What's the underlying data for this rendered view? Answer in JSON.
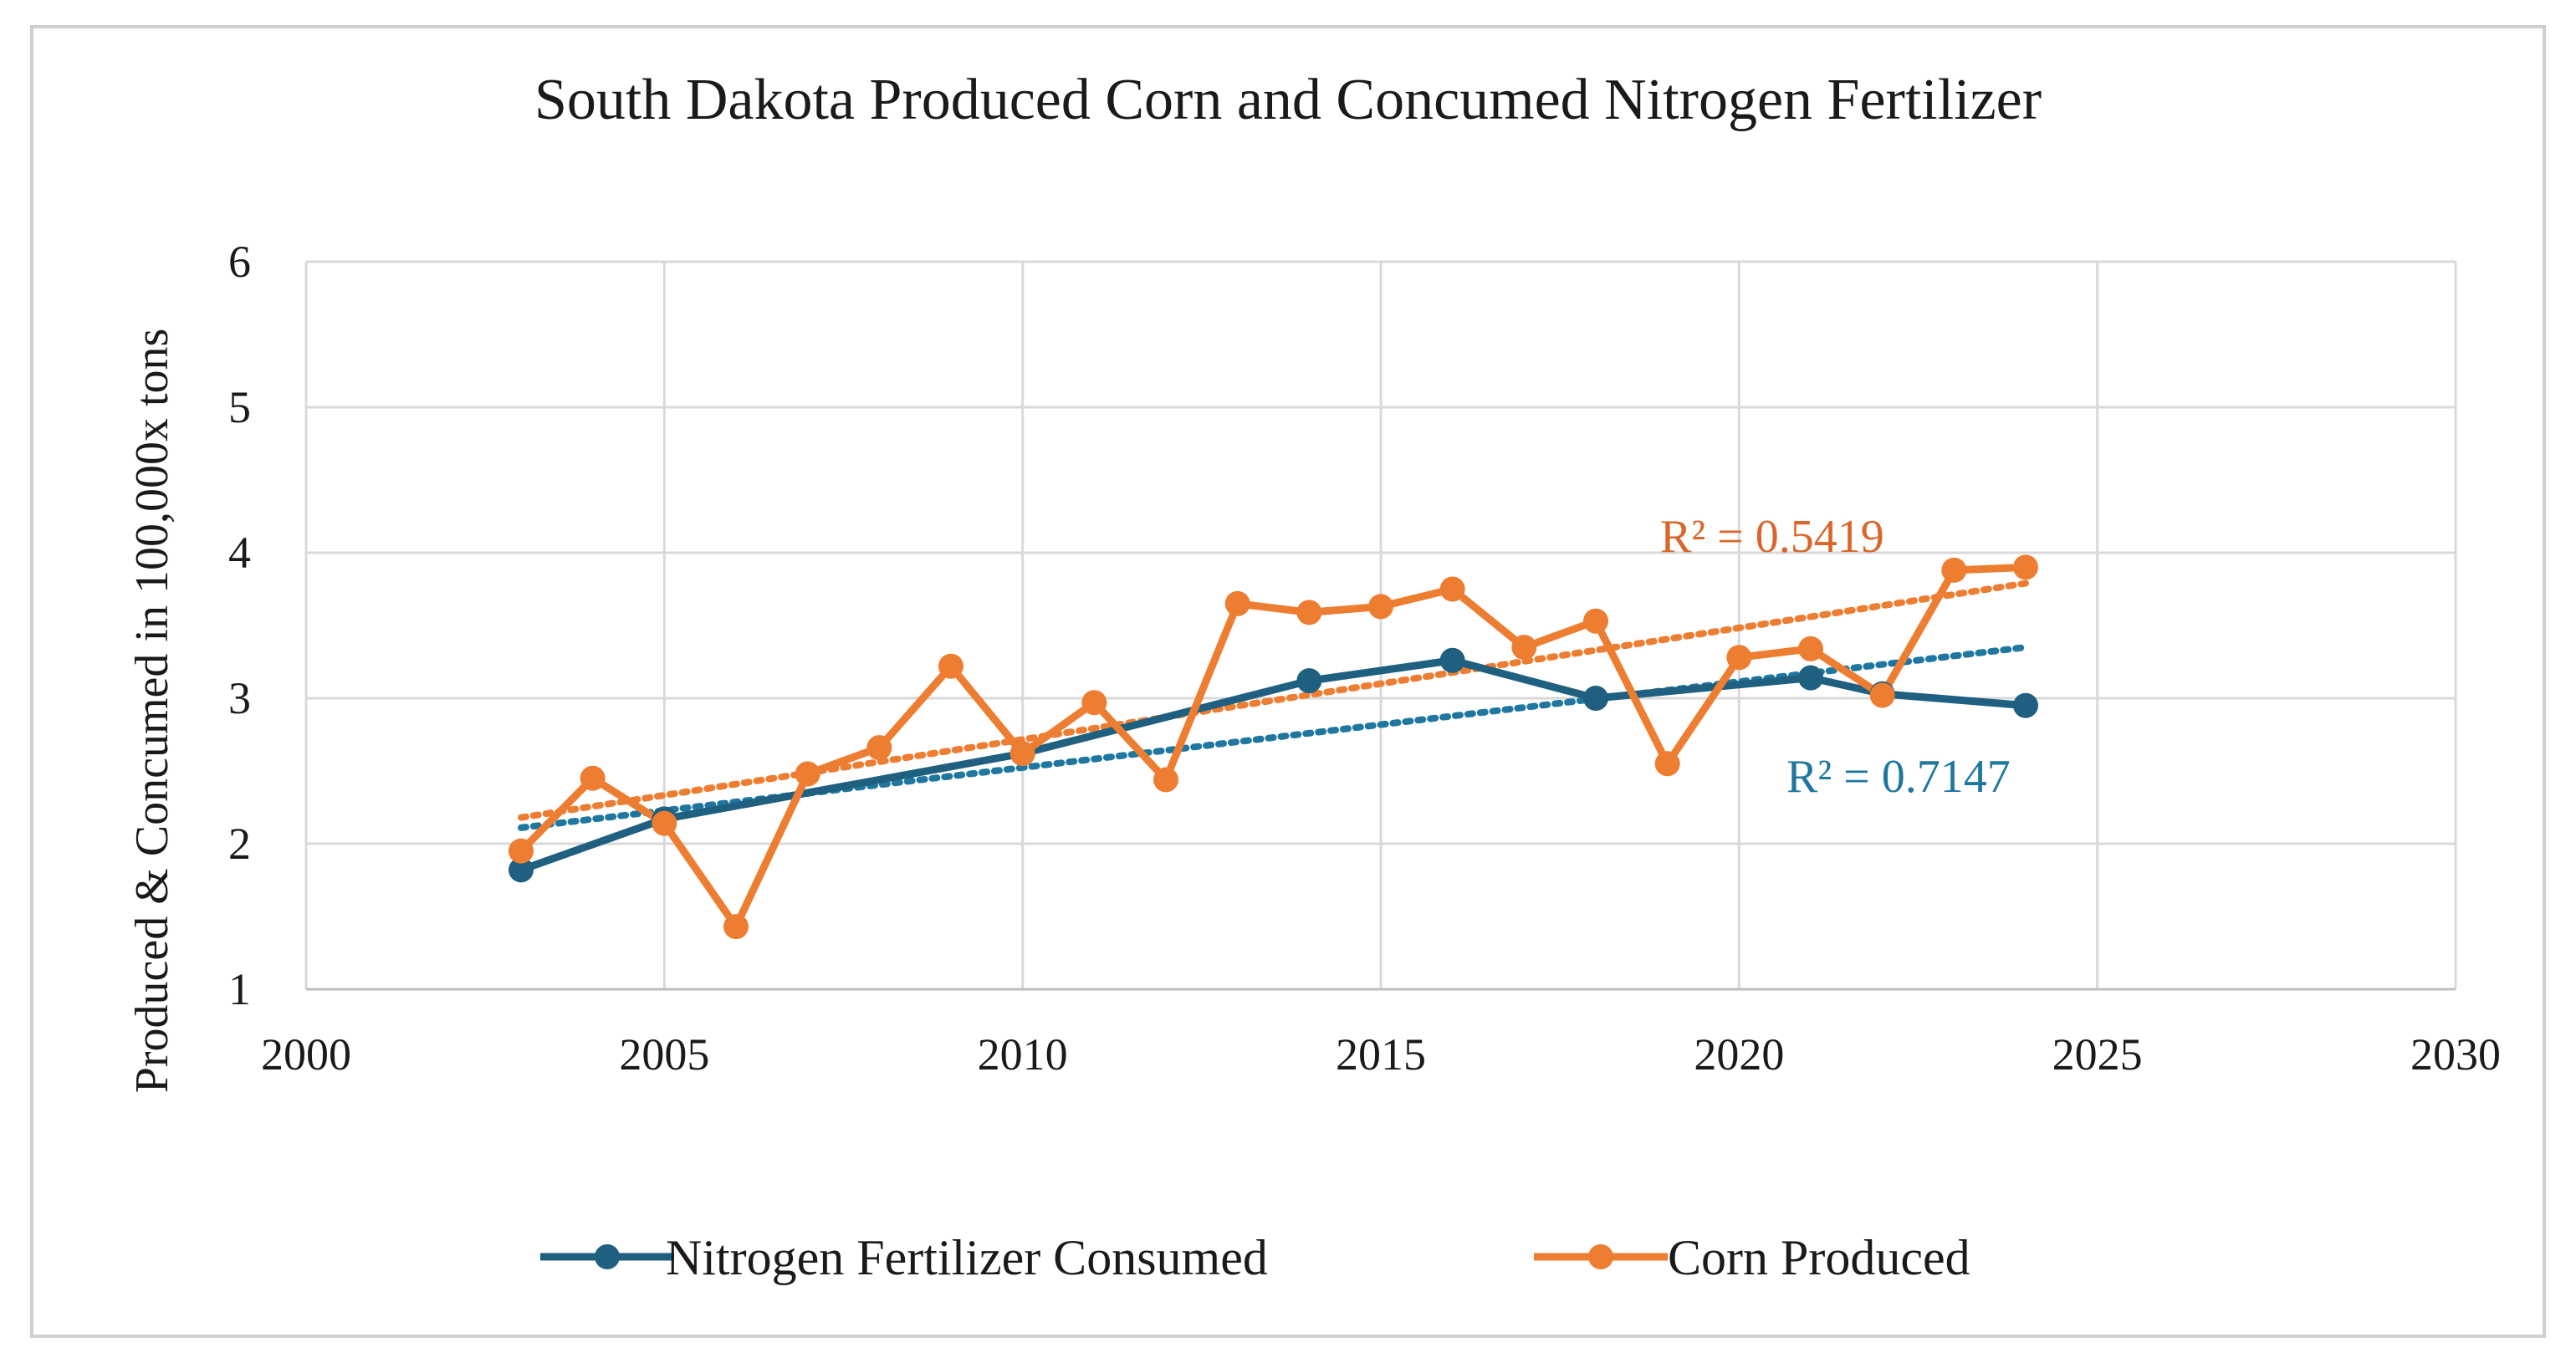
{
  "chart_data": {
    "type": "line",
    "title": "South Dakota Produced Corn and Concumed Nitrogen Fertilizer",
    "xlabel": "",
    "ylabel": "Produced & Concumed in 100,000x tons",
    "xlim": [
      2000,
      2030
    ],
    "ylim": [
      1,
      6
    ],
    "x_ticks": [
      2000,
      2005,
      2010,
      2015,
      2020,
      2025,
      2030
    ],
    "y_ticks": [
      1,
      2,
      3,
      4,
      5,
      6
    ],
    "grid": true,
    "legend_position": "bottom",
    "series": [
      {
        "name": "Nitrogen Fertilizer Consumed",
        "color": "#1f5f80",
        "points": [
          {
            "x": 2003,
            "y": 1.82
          },
          {
            "x": 2005,
            "y": 2.17
          },
          {
            "x": 2010,
            "y": 2.62
          },
          {
            "x": 2014,
            "y": 3.12
          },
          {
            "x": 2016,
            "y": 3.26
          },
          {
            "x": 2018,
            "y": 3.0
          },
          {
            "x": 2021,
            "y": 3.14
          },
          {
            "x": 2022,
            "y": 3.03
          },
          {
            "x": 2024,
            "y": 2.95
          }
        ],
        "trendline": {
          "type": "linear",
          "x_range": [
            2003,
            2024
          ],
          "y_start": 2.11,
          "y_end": 3.35,
          "r2_label": "R² = 0.7147",
          "color": "#1f77a0"
        }
      },
      {
        "name": "Corn Produced",
        "color": "#ed7d31",
        "points": [
          {
            "x": 2003,
            "y": 1.95
          },
          {
            "x": 2004,
            "y": 2.45
          },
          {
            "x": 2005,
            "y": 2.14
          },
          {
            "x": 2006,
            "y": 1.43
          },
          {
            "x": 2007,
            "y": 2.48
          },
          {
            "x": 2008,
            "y": 2.66
          },
          {
            "x": 2009,
            "y": 3.22
          },
          {
            "x": 2010,
            "y": 2.62
          },
          {
            "x": 2011,
            "y": 2.97
          },
          {
            "x": 2012,
            "y": 2.44
          },
          {
            "x": 2013,
            "y": 3.65
          },
          {
            "x": 2014,
            "y": 3.59
          },
          {
            "x": 2015,
            "y": 3.63
          },
          {
            "x": 2016,
            "y": 3.75
          },
          {
            "x": 2017,
            "y": 3.35
          },
          {
            "x": 2018,
            "y": 3.53
          },
          {
            "x": 2019,
            "y": 2.55
          },
          {
            "x": 2020,
            "y": 3.28
          },
          {
            "x": 2021,
            "y": 3.34
          },
          {
            "x": 2022,
            "y": 3.02
          },
          {
            "x": 2023,
            "y": 3.88
          },
          {
            "x": 2024,
            "y": 3.9
          }
        ],
        "trendline": {
          "type": "linear",
          "x_range": [
            2003,
            2024
          ],
          "y_start": 2.18,
          "y_end": 3.79,
          "r2_label": "R² = 0.5419",
          "color": "#ed7d31"
        }
      }
    ]
  }
}
